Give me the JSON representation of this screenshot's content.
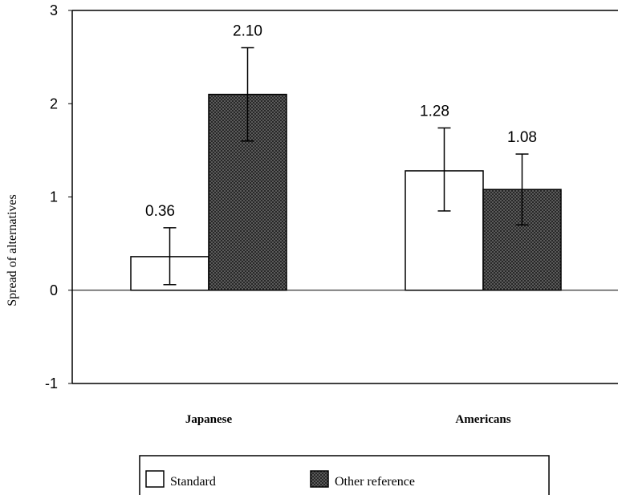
{
  "chart_data": {
    "type": "bar",
    "title": "",
    "xlabel": "",
    "ylabel": "Spread of alternatives",
    "ylim": [
      -1,
      3
    ],
    "yticks": [
      "-1",
      "0",
      "1",
      "2",
      "3"
    ],
    "categories": [
      "Japanese",
      "Americans"
    ],
    "series": [
      {
        "name": "Standard",
        "color": "#ffffff",
        "values": [
          0.36,
          1.28
        ],
        "value_labels": [
          "0.36",
          "1.28"
        ],
        "error_low": [
          0.06,
          0.85
        ],
        "error_high": [
          0.67,
          1.74
        ]
      },
      {
        "name": "Other reference",
        "color": "#4a4a4a",
        "pattern": "crosshatch",
        "values": [
          2.1,
          1.08
        ],
        "value_labels": [
          "2.10",
          "1.08"
        ],
        "error_low": [
          1.6,
          0.7
        ],
        "error_high": [
          2.6,
          1.46
        ]
      }
    ],
    "grid": false,
    "legend_position": "bottom"
  }
}
